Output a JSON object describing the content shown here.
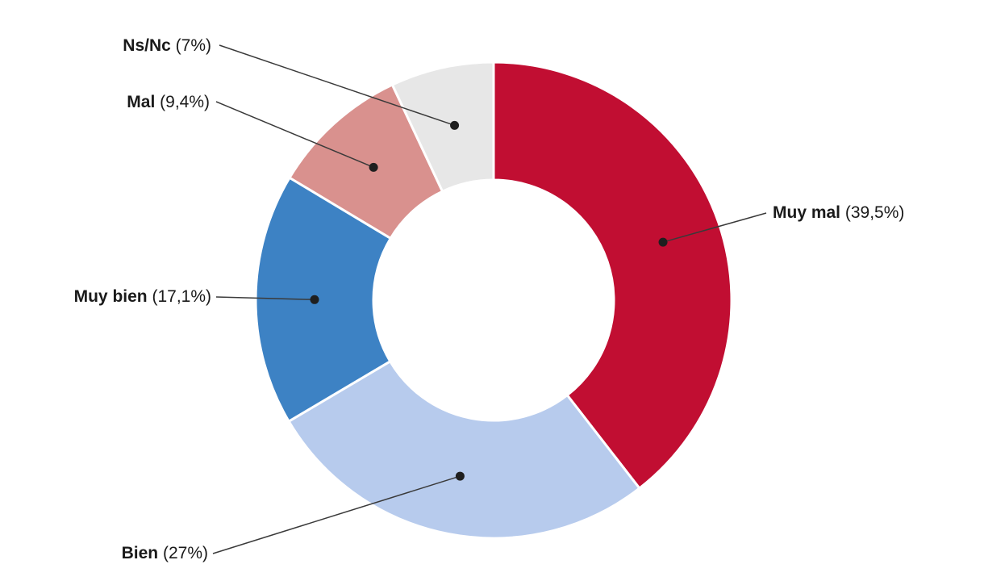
{
  "chart_data": {
    "type": "pie",
    "subtype": "donut",
    "start_angle_deg": 0,
    "direction": "clockwise",
    "background_color": "#ffffff",
    "leader_line_color": "#3a3a3a",
    "leader_dot_color": "#1f1f1f",
    "slice_separator_color": "#ffffff",
    "slices": [
      {
        "id": "muy-mal",
        "name": "Muy mal",
        "pct_label": "(39,5%)",
        "value": 39.5,
        "color": "#c10e32"
      },
      {
        "id": "bien",
        "name": "Bien",
        "pct_label": "(27%)",
        "value": 27,
        "color": "#b7cbed"
      },
      {
        "id": "muy-bien",
        "name": "Muy bien",
        "pct_label": "(17,1%)",
        "value": 17.1,
        "color": "#3d82c4"
      },
      {
        "id": "mal",
        "name": "Mal",
        "pct_label": "(9,4%)",
        "value": 9.4,
        "color": "#d9918e"
      },
      {
        "id": "ns-nc",
        "name": "Ns/Nc",
        "pct_label": "(7%)",
        "value": 7,
        "color": "#e7e7e7"
      }
    ]
  }
}
